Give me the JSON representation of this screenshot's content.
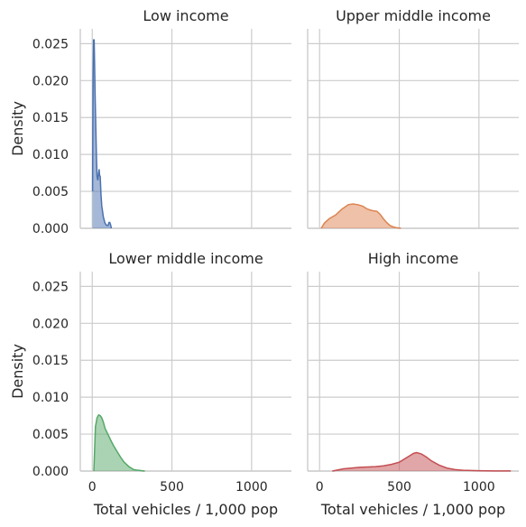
{
  "chart_data": {
    "type": "area",
    "xlabel": "Total vehicles / 1,000 pop",
    "ylabel": "Density",
    "xlim": [
      -75,
      1250
    ],
    "ylim": [
      0,
      0.027
    ],
    "xticks": [
      0,
      500,
      1000
    ],
    "xtick_labels": [
      "0",
      "500",
      "1000"
    ],
    "yticks": [
      0,
      0.005,
      0.01,
      0.015,
      0.02,
      0.025
    ],
    "ytick_labels": [
      "0.000",
      "0.005",
      "0.010",
      "0.015",
      "0.020",
      "0.025"
    ],
    "grid": true,
    "panels": [
      {
        "title": "Low income",
        "color": "#4c72b0",
        "x": [
          2,
          5,
          8,
          12,
          15,
          18,
          22,
          26,
          30,
          35,
          40,
          43,
          46,
          50,
          55,
          60,
          70,
          80,
          90,
          100,
          105,
          110,
          115,
          120
        ],
        "y": [
          0.005,
          0.02,
          0.0255,
          0.0255,
          0.022,
          0.018,
          0.014,
          0.01,
          0.007,
          0.0065,
          0.0075,
          0.008,
          0.0072,
          0.007,
          0.0045,
          0.003,
          0.0015,
          0.0007,
          0.0004,
          0.0004,
          0.0008,
          0.0008,
          0.0005,
          0.0
        ]
      },
      {
        "title": "Upper middle income",
        "color": "#dd8452",
        "x": [
          10,
          30,
          60,
          100,
          140,
          180,
          210,
          240,
          270,
          300,
          330,
          360,
          380,
          400,
          420,
          440,
          460,
          480,
          500,
          510
        ],
        "y": [
          0.0,
          0.0007,
          0.0013,
          0.0018,
          0.0026,
          0.0032,
          0.0033,
          0.0032,
          0.003,
          0.0026,
          0.0024,
          0.0023,
          0.0019,
          0.0013,
          0.0008,
          0.0004,
          0.0002,
          0.0001,
          3e-05,
          0.0
        ]
      },
      {
        "title": "Lower middle income",
        "color": "#55a868",
        "x": [
          10,
          20,
          30,
          40,
          50,
          60,
          70,
          80,
          100,
          120,
          140,
          160,
          180,
          200,
          230,
          260,
          290,
          310,
          330
        ],
        "y": [
          0.0,
          0.006,
          0.0072,
          0.0076,
          0.0075,
          0.0072,
          0.0066,
          0.0058,
          0.0049,
          0.004,
          0.0032,
          0.0025,
          0.0018,
          0.0012,
          0.0006,
          0.0002,
          0.0001,
          5e-05,
          0.0
        ]
      },
      {
        "title": "High income",
        "color": "#c44e52",
        "x": [
          80,
          150,
          250,
          350,
          400,
          450,
          500,
          530,
          560,
          590,
          610,
          640,
          670,
          700,
          750,
          800,
          850,
          900,
          1000,
          1100,
          1200
        ],
        "y": [
          0.0,
          0.0003,
          0.0005,
          0.0006,
          0.0007,
          0.0009,
          0.0012,
          0.0016,
          0.002,
          0.0024,
          0.0025,
          0.0023,
          0.0019,
          0.0014,
          0.0008,
          0.0004,
          0.0002,
          0.0001,
          5e-05,
          2e-05,
          1e-05
        ]
      }
    ]
  }
}
